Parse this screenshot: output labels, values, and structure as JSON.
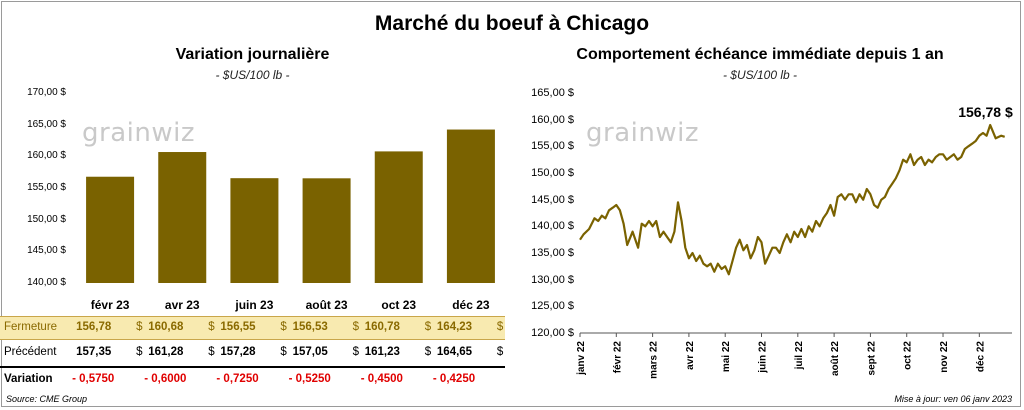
{
  "title": "Marché du boeuf à Chicago",
  "chart_data": [
    {
      "type": "bar",
      "title": "Variation  journalière",
      "subtitle": "- $US/100 lb -",
      "categories": [
        "févr 23",
        "avr 23",
        "juin 23",
        "août 23",
        "oct 23",
        "déc 23"
      ],
      "values": [
        156.78,
        160.68,
        156.55,
        156.53,
        160.78,
        164.23
      ],
      "ylim": [
        140,
        170
      ],
      "yticks": [
        "140,00 $",
        "145,00 $",
        "150,00 $",
        "155,00 $",
        "160,00 $",
        "165,00 $",
        "170,00 $"
      ],
      "bar_color": "#7a6200",
      "grid": false
    },
    {
      "type": "line",
      "title": "Comportement  échéance immédiate depuis 1 an",
      "subtitle": "- $US/100 lb -",
      "ylim": [
        120,
        165
      ],
      "yticks": [
        "120,00 $",
        "125,00 $",
        "130,00 $",
        "135,00 $",
        "140,00 $",
        "145,00 $",
        "150,00 $",
        "155,00 $",
        "160,00 $",
        "165,00 $"
      ],
      "xticks": [
        "janv 22",
        "févr 22",
        "mars 22",
        "avr 22",
        "mai 22",
        "juin 22",
        "juil 22",
        "août 22",
        "sept 22",
        "oct 22",
        "nov 22",
        "déc 22"
      ],
      "line_color": "#7a6200",
      "last_label": "156,78 $",
      "x": [
        0.0,
        0.1,
        0.25,
        0.4,
        0.5,
        0.6,
        0.7,
        0.8,
        0.9,
        1.0,
        1.1,
        1.2,
        1.3,
        1.45,
        1.6,
        1.7,
        1.8,
        1.9,
        2.0,
        2.1,
        2.2,
        2.3,
        2.4,
        2.5,
        2.6,
        2.7,
        2.8,
        2.9,
        3.0,
        3.1,
        3.2,
        3.3,
        3.4,
        3.5,
        3.6,
        3.7,
        3.8,
        3.9,
        4.0,
        4.1,
        4.2,
        4.3,
        4.4,
        4.5,
        4.6,
        4.7,
        4.8,
        4.9,
        5.0,
        5.1,
        5.2,
        5.3,
        5.4,
        5.5,
        5.6,
        5.7,
        5.8,
        5.9,
        6.0,
        6.1,
        6.2,
        6.3,
        6.4,
        6.5,
        6.6,
        6.7,
        6.8,
        6.9,
        7.0,
        7.1,
        7.2,
        7.3,
        7.4,
        7.5,
        7.6,
        7.7,
        7.8,
        7.9,
        8.0,
        8.1,
        8.2,
        8.3,
        8.4,
        8.5,
        8.6,
        8.7,
        8.8,
        8.9,
        9.0,
        9.1,
        9.2,
        9.3,
        9.4,
        9.5,
        9.6,
        9.7,
        9.8,
        9.9,
        10.0,
        10.1,
        10.2,
        10.3,
        10.4,
        10.5,
        10.6,
        10.7,
        10.8,
        10.9,
        11.0,
        11.1,
        11.2,
        11.3,
        11.45,
        11.6,
        11.7
      ],
      "y": [
        137.5,
        138.5,
        139.5,
        141.5,
        141.0,
        142.0,
        141.5,
        143.0,
        143.5,
        144.0,
        143.0,
        140.5,
        136.5,
        139.0,
        136.0,
        140.5,
        140.0,
        141.0,
        140.0,
        141.0,
        138.0,
        139.0,
        138.0,
        137.0,
        139.0,
        144.5,
        141.0,
        136.0,
        134.0,
        135.0,
        133.5,
        134.5,
        133.0,
        132.5,
        133.0,
        131.5,
        133.0,
        132.0,
        132.5,
        131.0,
        133.5,
        136.0,
        137.5,
        135.5,
        136.5,
        134.0,
        135.5,
        138.0,
        137.0,
        133.0,
        134.5,
        136.0,
        136.0,
        135.0,
        137.0,
        138.5,
        137.0,
        139.0,
        138.0,
        139.5,
        138.0,
        140.0,
        139.0,
        141.0,
        140.0,
        141.5,
        142.5,
        144.0,
        142.0,
        145.5,
        146.0,
        145.0,
        146.0,
        146.0,
        144.5,
        146.0,
        145.0,
        147.0,
        146.0,
        144.0,
        143.5,
        145.0,
        145.5,
        147.0,
        148.0,
        149.0,
        150.5,
        152.5,
        152.0,
        153.5,
        151.5,
        152.5,
        153.0,
        151.5,
        152.5,
        152.0,
        153.0,
        153.5,
        153.5,
        152.5,
        153.0,
        153.5,
        152.5,
        153.0,
        154.5,
        155.0,
        155.5,
        156.0,
        157.0,
        157.5,
        157.0,
        159.0,
        156.5,
        157.0,
        156.78
      ]
    }
  ],
  "table": {
    "rows": [
      {
        "label": "Fermeture",
        "values": [
          "156,78",
          "160,68",
          "156,55",
          "156,53",
          "160,78",
          "164,23"
        ],
        "currency": "$"
      },
      {
        "label": "Précédent",
        "values": [
          "157,35",
          "161,28",
          "157,28",
          "157,05",
          "161,23",
          "164,65"
        ],
        "currency": "$"
      },
      {
        "label": "Variation",
        "values": [
          "- 0,5750",
          "- 0,6000",
          "- 0,7250",
          "- 0,5250",
          "- 0,4500",
          "- 0,4250"
        ]
      }
    ]
  },
  "watermark": "grainwiz",
  "footer": {
    "source": "Source: CME Group",
    "updated": "Mise à jour: ven 06 janv 2023"
  }
}
